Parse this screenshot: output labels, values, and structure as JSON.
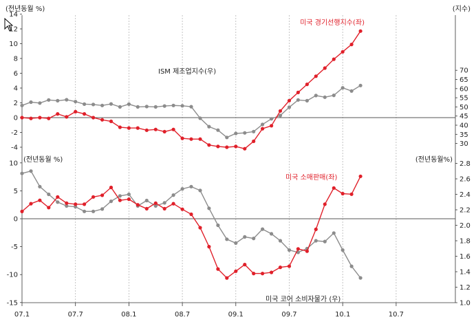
{
  "chart_data": [
    {
      "type": "line",
      "left_axis_unit": "(전년동월 %)",
      "right_axis_unit": "(지수)",
      "left_ylim": [
        -4,
        14
      ],
      "left_yticks": [
        -4,
        -2,
        0,
        2,
        4,
        6,
        8,
        10,
        12,
        14
      ],
      "right_ylim": [
        30,
        70
      ],
      "right_yticks": [
        30,
        35,
        40,
        45,
        50,
        55,
        60,
        65,
        70
      ],
      "series": [
        {
          "name": "미국 경기선행지수(좌)",
          "axis": "left",
          "color": "#e0202a",
          "values": [
            0.0,
            -0.1,
            0.0,
            -0.1,
            0.5,
            0.1,
            0.8,
            0.5,
            0.0,
            -0.3,
            -0.5,
            -1.3,
            -1.4,
            -1.4,
            -1.7,
            -1.6,
            -1.9,
            -1.6,
            -2.8,
            -2.9,
            -2.9,
            -3.7,
            -3.9,
            -4.0,
            -3.9,
            -4.2,
            -3.2,
            -1.5,
            -1.1,
            0.9,
            2.3,
            3.4,
            4.5,
            5.6,
            6.7,
            7.9,
            8.9,
            9.9,
            11.7
          ]
        },
        {
          "name": "ISM 제조업지수(우)",
          "axis": "right",
          "color": "#8c8c8c",
          "values": [
            50.8,
            52.6,
            52.1,
            53.8,
            53.4,
            53.9,
            52.9,
            51.5,
            51.3,
            50.8,
            51.6,
            50.0,
            51.5,
            50.0,
            50.2,
            50.0,
            50.5,
            50.8,
            50.6,
            50.1,
            43.8,
            39.2,
            37.3,
            33.3,
            35.5,
            35.8,
            36.5,
            40.4,
            43.5,
            45.3,
            49.8,
            53.8,
            53.4,
            56.2,
            55.3,
            56.3,
            60.4,
            58.7,
            61.7
          ]
        }
      ]
    },
    {
      "type": "line",
      "left_axis_unit": "(전년동월 %)",
      "right_axis_unit": "(전년동월%)",
      "left_ylim": [
        -15,
        10
      ],
      "left_yticks": [
        -15,
        -10,
        -5,
        0,
        5,
        10
      ],
      "right_ylim": [
        1.0,
        2.8
      ],
      "right_yticks": [
        1.0,
        1.2,
        1.4,
        1.6,
        1.8,
        2.0,
        2.2,
        2.4,
        2.6,
        2.8
      ],
      "x_labels": [
        "07.1",
        "07.7",
        "08.1",
        "08.7",
        "09.1",
        "09.7",
        "10.1",
        "10.7"
      ],
      "series": [
        {
          "name": "미국 소매판매(좌)",
          "axis": "left",
          "color": "#e0202a",
          "values": [
            1.3,
            2.7,
            3.3,
            2.0,
            3.9,
            2.8,
            2.6,
            2.6,
            3.9,
            4.2,
            5.6,
            3.3,
            3.5,
            2.5,
            1.8,
            2.8,
            1.8,
            2.7,
            1.7,
            0.8,
            -1.6,
            -5.0,
            -9.0,
            -10.6,
            -9.4,
            -8.2,
            -9.8,
            -9.8,
            -9.6,
            -8.7,
            -8.5,
            -5.4,
            -5.8,
            -1.9,
            2.6,
            5.5,
            4.5,
            4.4,
            7.6
          ]
        },
        {
          "name": "미국 코어 소비자물가 (우)",
          "axis": "right",
          "color": "#8c8c8c",
          "values": [
            2.67,
            2.7,
            2.5,
            2.4,
            2.3,
            2.25,
            2.24,
            2.18,
            2.18,
            2.21,
            2.31,
            2.38,
            2.4,
            2.25,
            2.32,
            2.25,
            2.29,
            2.39,
            2.47,
            2.5,
            2.45,
            2.22,
            2.0,
            1.82,
            1.77,
            1.85,
            1.83,
            1.95,
            1.89,
            1.8,
            1.68,
            1.65,
            1.7,
            1.8,
            1.79,
            1.9,
            1.68,
            1.47,
            1.32
          ]
        }
      ]
    }
  ]
}
